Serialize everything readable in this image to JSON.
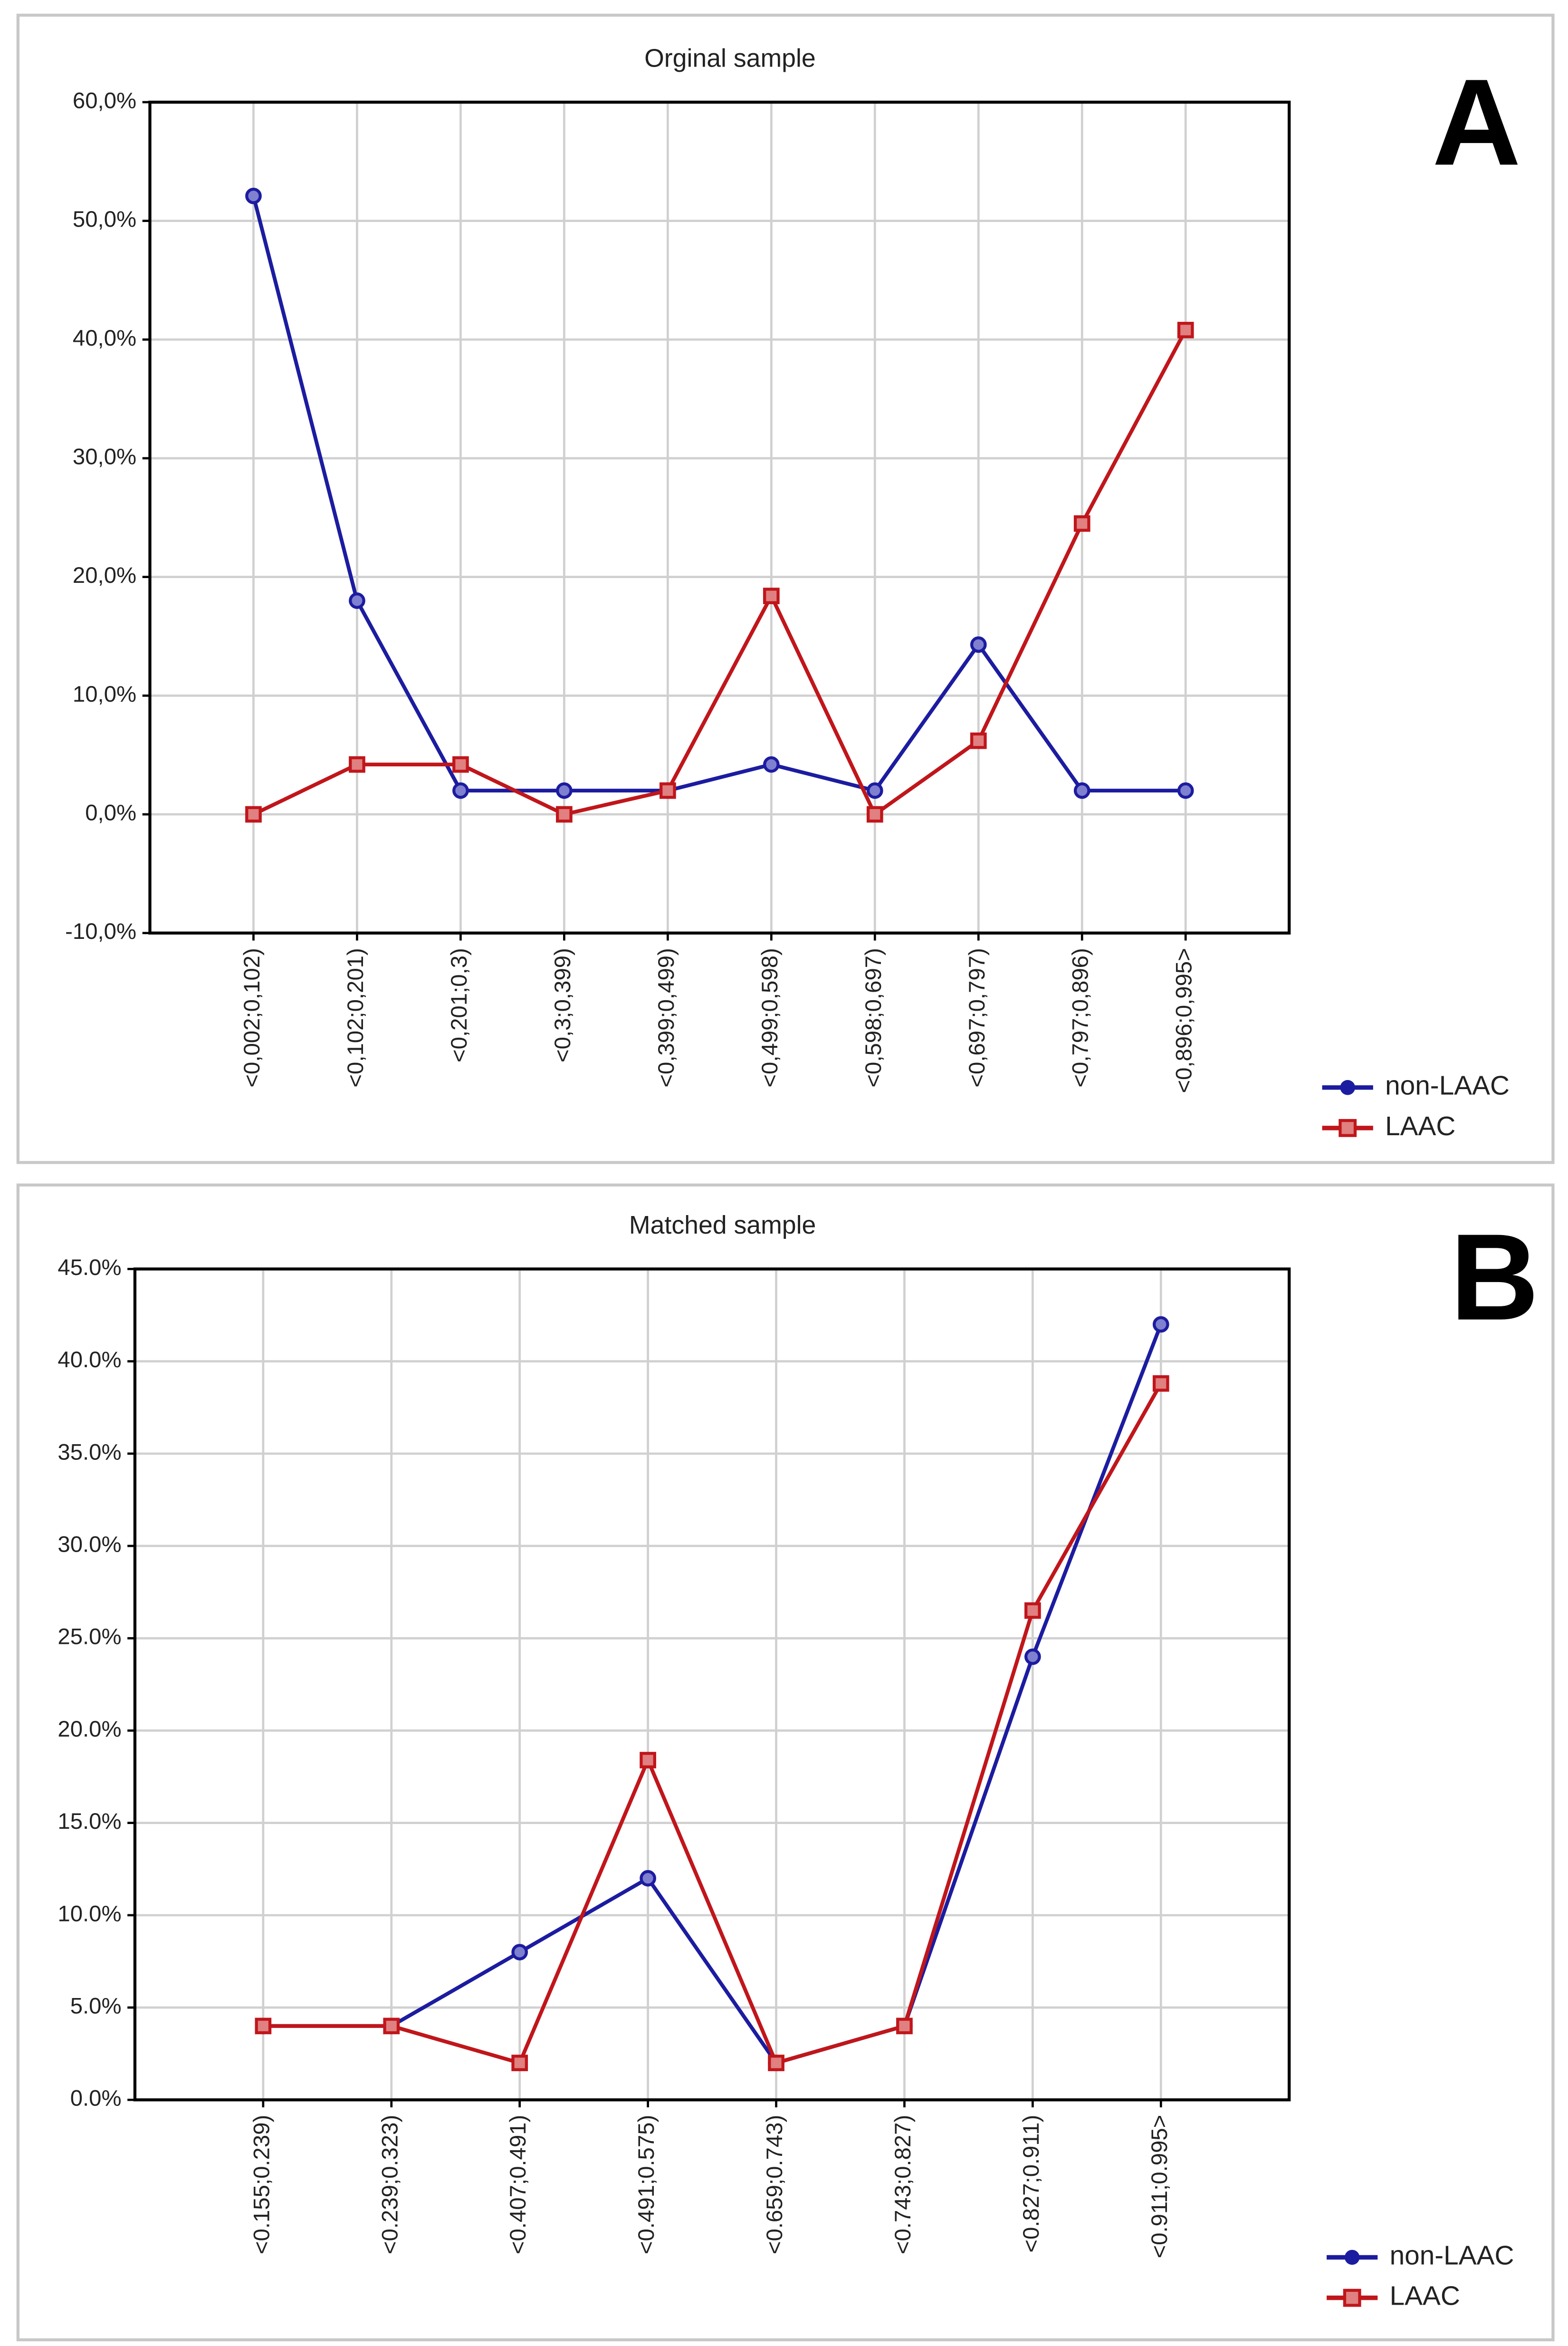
{
  "chart_data": [
    {
      "type": "line",
      "title": "Orginal sample",
      "panel_label": "A",
      "categories": [
        "<0,002;0,102)",
        "<0,102;0,201)",
        "<0,201;0,3)",
        "<0,3;0,399)",
        "<0,399;0,499)",
        "<0,499;0,598)",
        "<0,598;0,697)",
        "<0,697;0,797)",
        "<0,797;0,896)",
        "<0,896;0,995>"
      ],
      "series": [
        {
          "name": "non-LAAC",
          "color": "#1c1ca0",
          "values": [
            52.1,
            18,
            2,
            2,
            2,
            4.2,
            2,
            14.3,
            2,
            2
          ]
        },
        {
          "name": "LAAC",
          "color": "#c0161b",
          "values": [
            0,
            4.2,
            4.2,
            0,
            2,
            18.4,
            0,
            6.2,
            24.5,
            40.8
          ]
        }
      ],
      "ylim": [
        -10,
        60
      ],
      "yticks": [
        {
          "value": -10,
          "label": "-10,0%"
        },
        {
          "value": 0,
          "label": "0,0%"
        },
        {
          "value": 10,
          "label": "10,0%"
        },
        {
          "value": 20,
          "label": "20,0%"
        },
        {
          "value": 30,
          "label": "30,0%"
        },
        {
          "value": 40,
          "label": "40,0%"
        },
        {
          "value": 50,
          "label": "50,0%"
        },
        {
          "value": 60,
          "label": "60,0%"
        }
      ],
      "grid": true,
      "legend": "lower right"
    },
    {
      "type": "line",
      "title": "Matched sample",
      "panel_label": "B",
      "categories": [
        "<0.155;0.239)",
        "<0.239;0.323)",
        "<0.407;0.491)",
        "<0.491;0.575)",
        "<0.659;0.743)",
        "<0.743;0.827)",
        "<0.827;0.911)",
        "<0.911;0.995>"
      ],
      "series": [
        {
          "name": "non-LAAC",
          "color": "#1c1ca0",
          "values": [
            4,
            4,
            8,
            12,
            2,
            4,
            24,
            42
          ]
        },
        {
          "name": "LAAC",
          "color": "#c0161b",
          "values": [
            4,
            4,
            2,
            18.4,
            2,
            4,
            26.5,
            38.8
          ]
        }
      ],
      "ylim": [
        0,
        45
      ],
      "yticks": [
        {
          "value": 0,
          "label": "0.0%"
        },
        {
          "value": 5,
          "label": "5.0%"
        },
        {
          "value": 10,
          "label": "10.0%"
        },
        {
          "value": 15,
          "label": "15.0%"
        },
        {
          "value": 20,
          "label": "20.0%"
        },
        {
          "value": 25,
          "label": "25.0%"
        },
        {
          "value": 30,
          "label": "30.0%"
        },
        {
          "value": 35,
          "label": "35.0%"
        },
        {
          "value": 40,
          "label": "40.0%"
        },
        {
          "value": 45,
          "label": "45.0%"
        }
      ],
      "grid": true,
      "legend": "lower right"
    }
  ]
}
